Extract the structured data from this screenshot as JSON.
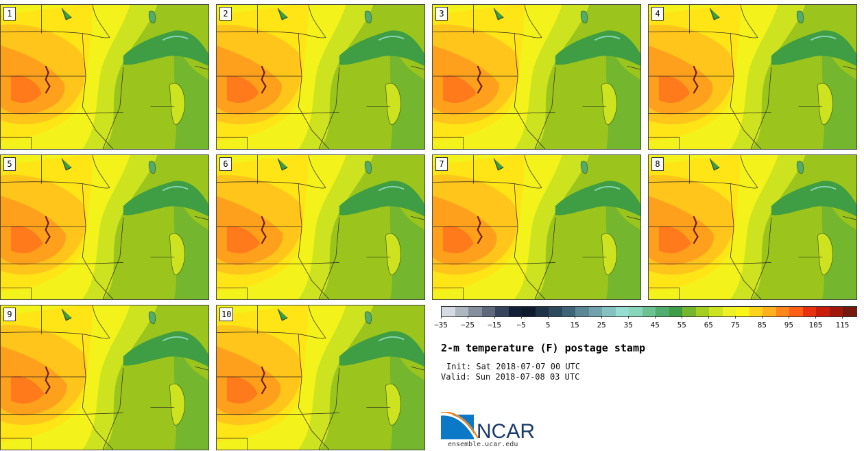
{
  "panels": [
    {
      "label": "1",
      "variant": 0
    },
    {
      "label": "2",
      "variant": 1
    },
    {
      "label": "3",
      "variant": 2
    },
    {
      "label": "4",
      "variant": 3
    },
    {
      "label": "5",
      "variant": 4
    },
    {
      "label": "6",
      "variant": 5
    },
    {
      "label": "7",
      "variant": 6
    },
    {
      "label": "8",
      "variant": 7
    },
    {
      "label": "9",
      "variant": 8
    },
    {
      "label": "10",
      "variant": 9
    }
  ],
  "colorbar": {
    "colors": [
      "#d6dbe3",
      "#aeb6c2",
      "#858f9e",
      "#5e6a7c",
      "#36435a",
      "#131f36",
      "#0f1a2c",
      "#1f3346",
      "#2c4a5c",
      "#3f6479",
      "#5b8797",
      "#72a3ad",
      "#86c1c2",
      "#96dcd1",
      "#8ad6ba",
      "#6cc293",
      "#52ac6d",
      "#3f9d43",
      "#74b62e",
      "#a5cf20",
      "#cce31f",
      "#eef028",
      "#fcf519",
      "#ffd21c",
      "#ffb01d",
      "#ff861b",
      "#ff5f14",
      "#e8320e",
      "#c91d0b",
      "#a0180c",
      "#75190f"
    ],
    "tick_labels": [
      "−35",
      "−25",
      "−15",
      "−5",
      "5",
      "15",
      "25",
      "35",
      "45",
      "55",
      "65",
      "75",
      "85",
      "95",
      "105",
      "115"
    ]
  },
  "title": "2-m temperature (F) postage stamp",
  "init": "Init: Sat 2018-07-07 00 UTC",
  "valid": "Valid: Sun 2018-07-08 03 UTC",
  "logo_text": "NCAR",
  "url": "ensemble.ucar.edu"
}
